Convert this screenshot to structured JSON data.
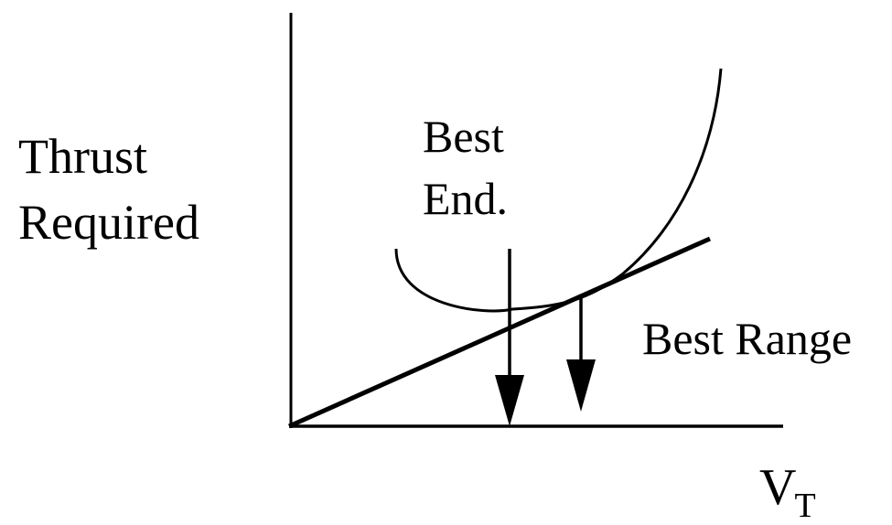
{
  "labels": {
    "y_axis_line1": "Thrust",
    "y_axis_line2": "Required",
    "x_axis_main": "V",
    "x_axis_subscript": "T",
    "best_endurance_line1": "Best",
    "best_endurance_line2": "End.",
    "best_range": "Best Range"
  },
  "colors": {
    "ink": "#000000",
    "background": "#ffffff"
  }
}
